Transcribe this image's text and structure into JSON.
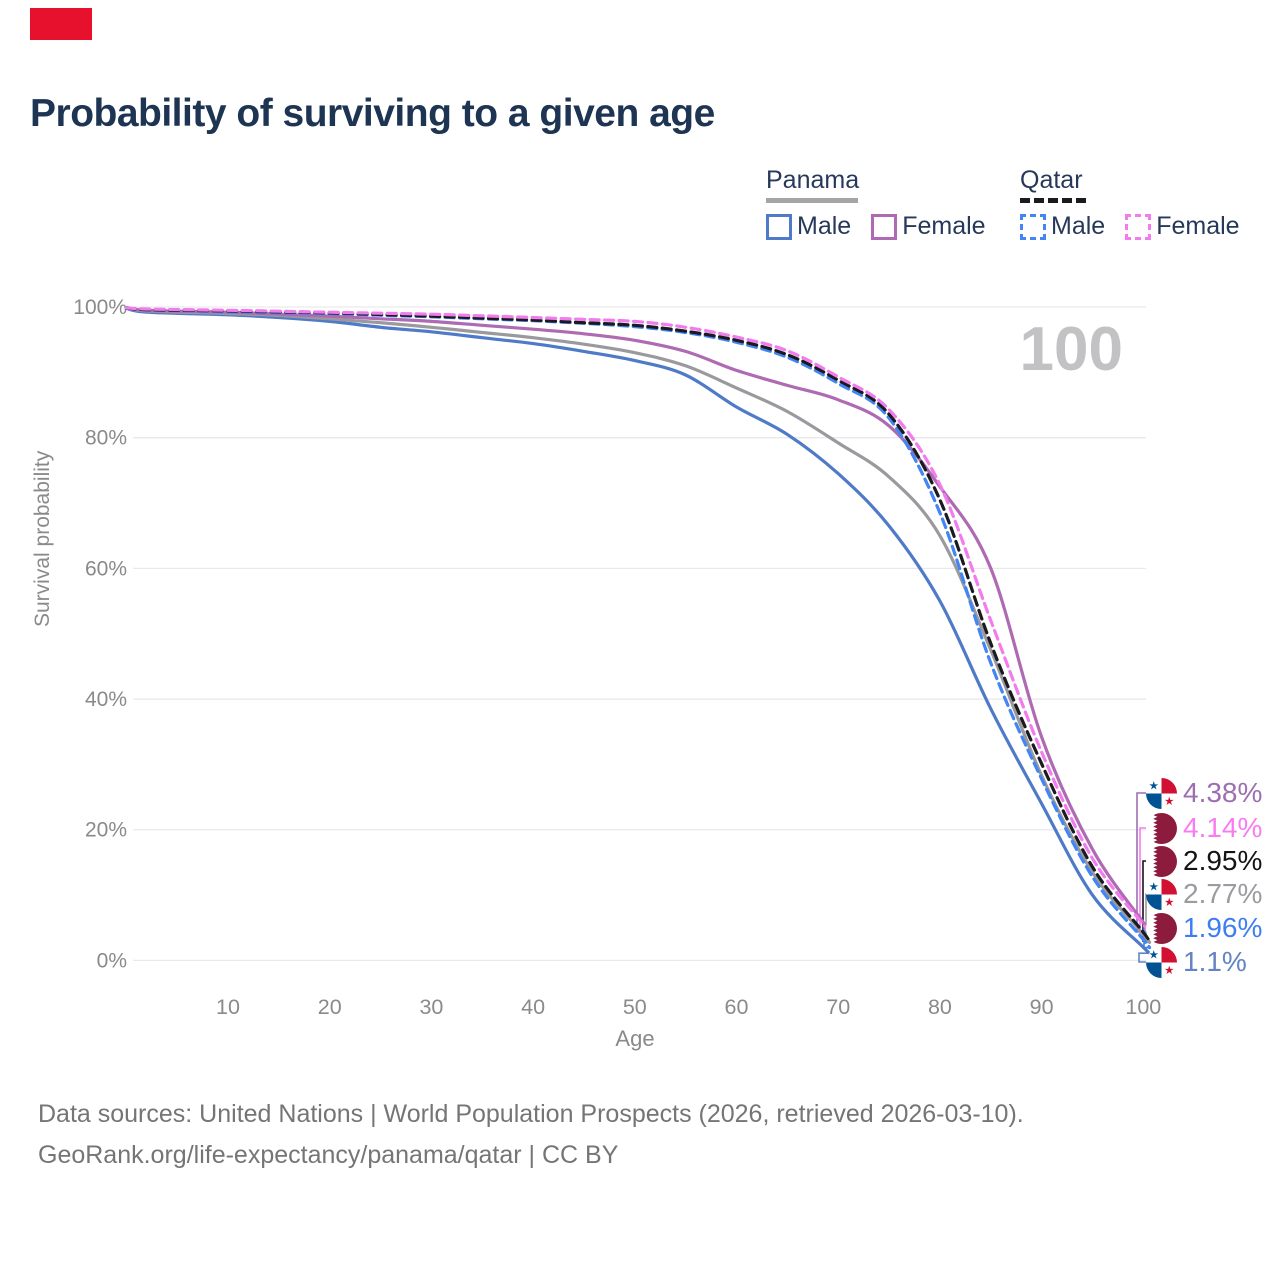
{
  "brand": {
    "color": "#E8112D"
  },
  "header": {
    "title": "Probability of surviving to a given age"
  },
  "legend": {
    "groups": [
      {
        "label": "Panama",
        "underline_color": "#A5A5A5",
        "underline_style": "solid",
        "items": [
          {
            "label": "Male",
            "color": "#4E7AC7",
            "style": "solid"
          },
          {
            "label": "Female",
            "color": "#AE6AB3",
            "style": "solid"
          }
        ]
      },
      {
        "label": "Qatar",
        "underline_color": "#1B1B1F",
        "underline_style": "dashed",
        "items": [
          {
            "label": "Male",
            "color": "#4285F4",
            "style": "dashed"
          },
          {
            "label": "Female",
            "color": "#F27CEE",
            "style": "dashed"
          }
        ]
      }
    ]
  },
  "chart_data": {
    "type": "line",
    "title": "Probability of surviving to a given age",
    "xlabel": "Age",
    "ylabel": "Survival probability",
    "xlim": [
      0,
      102
    ],
    "ylim": [
      0,
      100
    ],
    "x_ticks": [
      10,
      20,
      30,
      40,
      50,
      60,
      70,
      80,
      90,
      100
    ],
    "y_ticks": [
      "0%",
      "20%",
      "40%",
      "60%",
      "80%",
      "100%"
    ],
    "grid": "horizontal",
    "legend_position": "top-right",
    "age_counter": "100",
    "series": [
      {
        "name": "panama-male",
        "country": "Panama",
        "sex": "male",
        "color": "#4E7AC7",
        "dash": false,
        "points": [
          [
            0,
            99.8
          ],
          [
            2,
            99.2
          ],
          [
            10,
            98.8
          ],
          [
            15,
            98.4
          ],
          [
            20,
            97.8
          ],
          [
            25,
            96.9
          ],
          [
            30,
            96.2
          ],
          [
            35,
            95.3
          ],
          [
            40,
            94.4
          ],
          [
            45,
            93.2
          ],
          [
            50,
            91.8
          ],
          [
            55,
            89.6
          ],
          [
            60,
            84.7
          ],
          [
            65,
            80.5
          ],
          [
            70,
            74.5
          ],
          [
            75,
            66.5
          ],
          [
            80,
            55.0
          ],
          [
            85,
            38.5
          ],
          [
            90,
            24.0
          ],
          [
            95,
            10.0
          ],
          [
            100,
            2.0
          ],
          [
            100.6,
            1.1
          ]
        ]
      },
      {
        "name": "panama-total",
        "country": "Panama",
        "sex": "both",
        "color": "#9A9A9E",
        "dash": false,
        "points": [
          [
            0,
            99.9
          ],
          [
            2,
            99.4
          ],
          [
            10,
            99.0
          ],
          [
            15,
            98.7
          ],
          [
            20,
            98.2
          ],
          [
            25,
            97.6
          ],
          [
            30,
            96.9
          ],
          [
            35,
            96.1
          ],
          [
            40,
            95.3
          ],
          [
            45,
            94.3
          ],
          [
            50,
            93.0
          ],
          [
            55,
            91.0
          ],
          [
            60,
            87.6
          ],
          [
            65,
            84.0
          ],
          [
            70,
            79.2
          ],
          [
            75,
            74.0
          ],
          [
            80,
            65.0
          ],
          [
            85,
            47.5
          ],
          [
            90,
            28.3
          ],
          [
            95,
            13.5
          ],
          [
            100,
            4.0
          ],
          [
            100.6,
            2.77
          ]
        ]
      },
      {
        "name": "panama-female",
        "country": "Panama",
        "sex": "female",
        "color": "#AE6AB3",
        "dash": false,
        "points": [
          [
            0,
            99.9
          ],
          [
            2,
            99.5
          ],
          [
            10,
            99.2
          ],
          [
            15,
            98.9
          ],
          [
            20,
            98.6
          ],
          [
            25,
            98.2
          ],
          [
            30,
            97.8
          ],
          [
            35,
            97.2
          ],
          [
            40,
            96.6
          ],
          [
            45,
            95.9
          ],
          [
            50,
            94.9
          ],
          [
            55,
            93.2
          ],
          [
            60,
            90.3
          ],
          [
            65,
            88.0
          ],
          [
            70,
            85.8
          ],
          [
            75,
            81.8
          ],
          [
            80,
            72.5
          ],
          [
            85,
            60.0
          ],
          [
            90,
            34.2
          ],
          [
            95,
            17.0
          ],
          [
            100,
            5.8
          ],
          [
            100.6,
            4.38
          ]
        ]
      },
      {
        "name": "qatar-male",
        "country": "Qatar",
        "sex": "male",
        "color": "#4285F4",
        "dash": true,
        "points": [
          [
            0,
            99.9
          ],
          [
            2,
            99.6
          ],
          [
            10,
            99.3
          ],
          [
            15,
            99.15
          ],
          [
            20,
            99.0
          ],
          [
            25,
            98.75
          ],
          [
            30,
            98.5
          ],
          [
            35,
            98.2
          ],
          [
            40,
            97.9
          ],
          [
            45,
            97.5
          ],
          [
            50,
            97.0
          ],
          [
            55,
            96.1
          ],
          [
            60,
            94.6
          ],
          [
            65,
            92.3
          ],
          [
            70,
            88.3
          ],
          [
            75,
            83.0
          ],
          [
            80,
            68.5
          ],
          [
            85,
            45.5
          ],
          [
            90,
            27.8
          ],
          [
            95,
            12.8
          ],
          [
            100,
            3.2
          ],
          [
            100.6,
            1.96
          ]
        ]
      },
      {
        "name": "qatar-total",
        "country": "Qatar",
        "sex": "both",
        "color": "#1B1B1F",
        "dash": true,
        "points": [
          [
            0,
            99.9
          ],
          [
            2,
            99.6
          ],
          [
            10,
            99.4
          ],
          [
            15,
            99.25
          ],
          [
            20,
            99.1
          ],
          [
            25,
            98.85
          ],
          [
            30,
            98.6
          ],
          [
            35,
            98.3
          ],
          [
            40,
            98.0
          ],
          [
            45,
            97.6
          ],
          [
            50,
            97.2
          ],
          [
            55,
            96.3
          ],
          [
            60,
            94.9
          ],
          [
            65,
            92.7
          ],
          [
            70,
            88.8
          ],
          [
            75,
            83.6
          ],
          [
            80,
            70.5
          ],
          [
            85,
            48.5
          ],
          [
            90,
            30.1
          ],
          [
            95,
            14.3
          ],
          [
            100,
            4.3
          ],
          [
            100.6,
            2.95
          ]
        ]
      },
      {
        "name": "qatar-female",
        "country": "Qatar",
        "sex": "female",
        "color": "#F27CEE",
        "dash": true,
        "points": [
          [
            0,
            99.9
          ],
          [
            2,
            99.7
          ],
          [
            10,
            99.5
          ],
          [
            15,
            99.35
          ],
          [
            20,
            99.2
          ],
          [
            25,
            99.05
          ],
          [
            30,
            98.9
          ],
          [
            35,
            98.65
          ],
          [
            40,
            98.4
          ],
          [
            45,
            98.1
          ],
          [
            50,
            97.8
          ],
          [
            55,
            96.9
          ],
          [
            60,
            95.4
          ],
          [
            65,
            93.3
          ],
          [
            70,
            89.3
          ],
          [
            75,
            84.3
          ],
          [
            80,
            72.8
          ],
          [
            85,
            52.0
          ],
          [
            90,
            31.9
          ],
          [
            95,
            15.6
          ],
          [
            100,
            5.5
          ],
          [
            100.6,
            4.14
          ]
        ]
      }
    ],
    "end_labels": [
      {
        "value": "4.38%",
        "color": "#9C6FB2",
        "flag": "panama",
        "series": "panama-female"
      },
      {
        "value": "4.14%",
        "color": "#F97BF2",
        "flag": "qatar",
        "series": "qatar-female"
      },
      {
        "value": "2.95%",
        "color": "#141417",
        "flag": "qatar",
        "series": "qatar-total"
      },
      {
        "value": "2.77%",
        "color": "#9B9BA0",
        "flag": "panama",
        "series": "panama-total"
      },
      {
        "value": "1.96%",
        "color": "#3E7EF0",
        "flag": "qatar",
        "series": "qatar-male"
      },
      {
        "value": "1.1%",
        "color": "#6283C6",
        "flag": "panama",
        "series": "panama-male"
      }
    ]
  },
  "footer": {
    "line1": "Data sources: United Nations | World Population Prospects (2026, retrieved 2026-03-10).",
    "line2": "GeoRank.org/life-expectancy/panama/qatar | CC BY"
  }
}
